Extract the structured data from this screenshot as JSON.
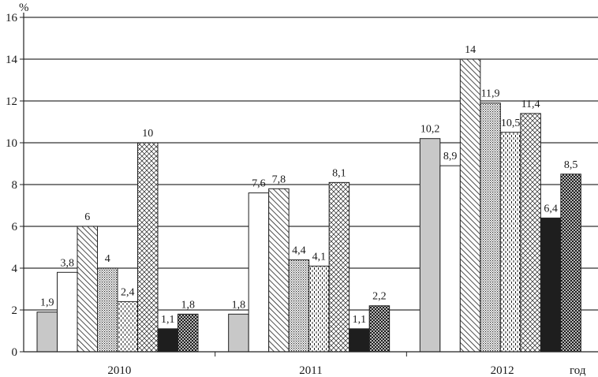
{
  "chart_data": {
    "type": "bar",
    "title": "",
    "ylabel": "%",
    "xlabel": "год",
    "ylim": [
      0,
      16
    ],
    "yticks": [
      0,
      2,
      4,
      6,
      8,
      10,
      12,
      14,
      16
    ],
    "ytick_labels": [
      "0",
      "2",
      "4",
      "6",
      "8",
      "10",
      "12",
      "14",
      "16"
    ],
    "grid": "horizontal",
    "legend": "none",
    "categories": [
      "2010",
      "2011",
      "2012"
    ],
    "series": [
      {
        "pattern": "solid-gray",
        "values": [
          1.9,
          1.8,
          10.2
        ],
        "labels": [
          "1,9",
          "1,8",
          "10,2"
        ]
      },
      {
        "pattern": "white",
        "values": [
          3.8,
          7.6,
          8.9
        ],
        "labels": [
          "3,8",
          "7,6",
          "8,9"
        ]
      },
      {
        "pattern": "diagonal-hatch",
        "values": [
          6,
          7.8,
          14
        ],
        "labels": [
          "6",
          "7,8",
          "14"
        ]
      },
      {
        "pattern": "dense-dots",
        "values": [
          4,
          4.4,
          11.9
        ],
        "labels": [
          "4",
          "4,4",
          "11,9"
        ]
      },
      {
        "pattern": "vertical-dashes",
        "values": [
          2.4,
          4.1,
          10.5
        ],
        "labels": [
          "2,4",
          "4,1",
          "10,5"
        ]
      },
      {
        "pattern": "diamond-crosshatch",
        "values": [
          10,
          8.1,
          11.4
        ],
        "labels": [
          "10",
          "8,1",
          "11,4"
        ]
      },
      {
        "pattern": "solid-black",
        "values": [
          1.1,
          1.1,
          6.4
        ],
        "labels": [
          "1,1",
          "1,1",
          "6,4"
        ]
      },
      {
        "pattern": "heavy-crosshatch",
        "values": [
          1.8,
          2.2,
          8.5
        ],
        "labels": [
          "1,8",
          "2,2",
          "8,5"
        ]
      }
    ],
    "colors": {
      "gray": "#c8c8c8",
      "black": "#1e1e1e",
      "grid": "#333333",
      "bar_edge": "#222222"
    }
  }
}
